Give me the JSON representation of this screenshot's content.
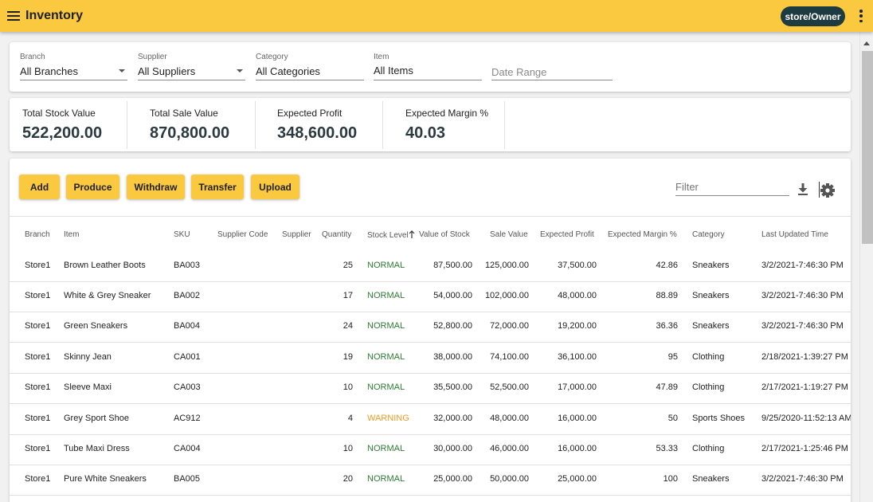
{
  "app": {
    "title": "Inventory",
    "user_label": "store/Owner"
  },
  "filters": {
    "branch": {
      "label": "Branch",
      "value": "All Branches"
    },
    "supplier": {
      "label": "Supplier",
      "value": "All Suppliers"
    },
    "category": {
      "label": "Category",
      "value": "All Categories"
    },
    "item": {
      "label": "Item",
      "value": "All Items"
    },
    "date_range": {
      "placeholder": "Date Range"
    }
  },
  "totals": {
    "stock_value": {
      "label": "Total Stock Value",
      "value": "522,200.00"
    },
    "sale_value": {
      "label": "Total Sale Value",
      "value": "870,800.00"
    },
    "expected_profit": {
      "label": "Expected Profit",
      "value": "348,600.00"
    },
    "expected_margin": {
      "label": "Expected Margin %",
      "value": "40.03"
    }
  },
  "toolbar": {
    "buttons": [
      "Add",
      "Produce",
      "Withdraw",
      "Transfer",
      "Upload"
    ],
    "filter_placeholder": "Filter"
  },
  "table": {
    "columns": [
      "Branch",
      "Item",
      "SKU",
      "Supplier Code",
      "Supplier",
      "Quantity",
      "Stock Level",
      "Value of Stock",
      "Sale Value",
      "Expected Profit",
      "Expected Margin %",
      "Category",
      "Last Updated Time"
    ],
    "sort": {
      "column": "Stock Level",
      "direction": "ascending"
    },
    "status_colors": {
      "NORMAL": "#2e7d32",
      "WARNING": "#f59a23"
    },
    "rows": [
      {
        "branch": "Store1",
        "item": "Brown Leather Boots",
        "sku": "BA003",
        "supplier_code": "",
        "supplier": "",
        "quantity": "25",
        "level": "NORMAL",
        "value": "87,500.00",
        "sale": "125,000.00",
        "profit": "37,500.00",
        "margin": "42.86",
        "category": "Sneakers",
        "updated": "3/2/2021-7:46:30 PM"
      },
      {
        "branch": "Store1",
        "item": "White & Grey Sneaker",
        "sku": "BA002",
        "supplier_code": "",
        "supplier": "",
        "quantity": "17",
        "level": "NORMAL",
        "value": "54,000.00",
        "sale": "102,000.00",
        "profit": "48,000.00",
        "margin": "88.89",
        "category": "Sneakers",
        "updated": "3/2/2021-7:46:30 PM"
      },
      {
        "branch": "Store1",
        "item": "Green Sneakers",
        "sku": "BA004",
        "supplier_code": "",
        "supplier": "",
        "quantity": "24",
        "level": "NORMAL",
        "value": "52,800.00",
        "sale": "72,000.00",
        "profit": "19,200.00",
        "margin": "36.36",
        "category": "Sneakers",
        "updated": "3/2/2021-7:46:30 PM"
      },
      {
        "branch": "Store1",
        "item": "Skinny Jean",
        "sku": "CA001",
        "supplier_code": "",
        "supplier": "",
        "quantity": "19",
        "level": "NORMAL",
        "value": "38,000.00",
        "sale": "74,100.00",
        "profit": "36,100.00",
        "margin": "95",
        "category": "Clothing",
        "updated": "2/18/2021-1:39:27 PM"
      },
      {
        "branch": "Store1",
        "item": "Sleeve Maxi",
        "sku": "CA003",
        "supplier_code": "",
        "supplier": "",
        "quantity": "10",
        "level": "NORMAL",
        "value": "35,500.00",
        "sale": "52,500.00",
        "profit": "17,000.00",
        "margin": "47.89",
        "category": "Clothing",
        "updated": "2/17/2021-1:19:27 PM"
      },
      {
        "branch": "Store1",
        "item": "Grey Sport Shoe",
        "sku": "AC912",
        "supplier_code": "",
        "supplier": "",
        "quantity": "4",
        "level": "WARNING",
        "value": "32,000.00",
        "sale": "48,000.00",
        "profit": "16,000.00",
        "margin": "50",
        "category": "Sports Shoes",
        "updated": "9/25/2020-11:52:13 AM"
      },
      {
        "branch": "Store1",
        "item": "Tube Maxi Dress",
        "sku": "CA004",
        "supplier_code": "",
        "supplier": "",
        "quantity": "10",
        "level": "NORMAL",
        "value": "30,000.00",
        "sale": "46,000.00",
        "profit": "16,000.00",
        "margin": "53.33",
        "category": "Clothing",
        "updated": "2/17/2021-1:25:46 PM"
      },
      {
        "branch": "Store1",
        "item": "Pure White Sneakers",
        "sku": "BA005",
        "supplier_code": "",
        "supplier": "",
        "quantity": "20",
        "level": "NORMAL",
        "value": "25,000.00",
        "sale": "50,000.00",
        "profit": "25,000.00",
        "margin": "100",
        "category": "Sneakers",
        "updated": "3/2/2021-7:46:30 PM"
      }
    ]
  }
}
